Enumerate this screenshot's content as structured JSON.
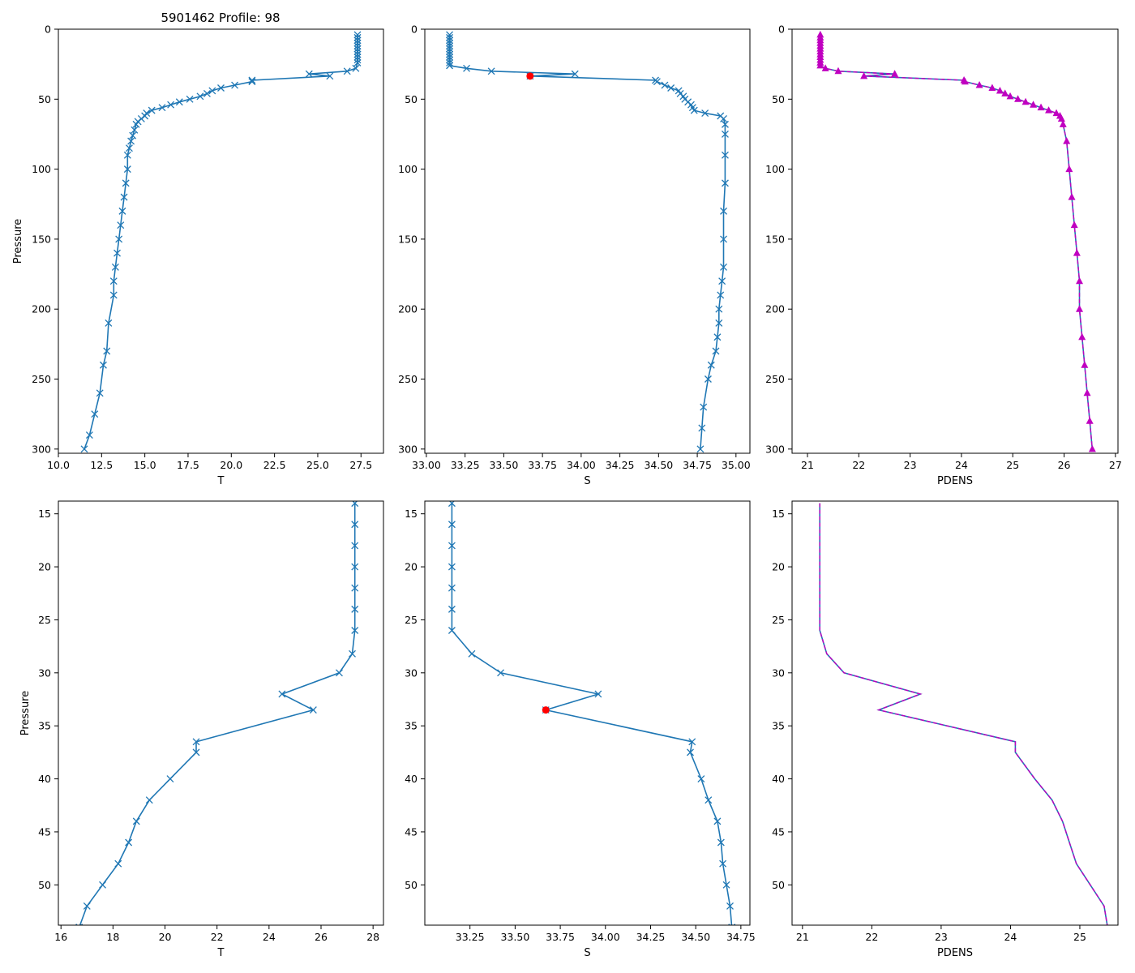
{
  "figure_title": "5901462 Profile: 98",
  "colors": {
    "series": "#1f77b4",
    "magenta": "#c000c0",
    "flag": "#ff0000",
    "axes": "#000000"
  },
  "chart_data": [
    {
      "type": "line",
      "panel": "top-left",
      "title": "5901462 Profile: 98",
      "xlabel": "T",
      "ylabel": "Pressure",
      "xlim": [
        10.0,
        28.8
      ],
      "ylim": [
        303,
        0
      ],
      "y_inverted": true,
      "xticks": [
        "10.0",
        "12.5",
        "15.0",
        "17.5",
        "20.0",
        "22.5",
        "25.0",
        "27.5"
      ],
      "yticks": [
        "0",
        "50",
        "100",
        "150",
        "200",
        "250",
        "300"
      ],
      "marker": "x",
      "x": [
        27.3,
        27.3,
        27.3,
        27.3,
        27.3,
        27.3,
        27.3,
        27.3,
        27.3,
        27.3,
        27.3,
        27.2,
        26.7,
        24.5,
        25.7,
        21.2,
        21.2,
        20.2,
        19.4,
        18.9,
        18.6,
        18.2,
        17.6,
        17.0,
        16.5,
        16.0,
        15.4,
        15.1,
        15.0,
        14.8,
        14.6,
        14.5,
        14.4,
        14.3,
        14.2,
        14.1,
        14.0,
        14.0,
        13.9,
        13.8,
        13.7,
        13.6,
        13.5,
        13.4,
        13.3,
        13.2,
        13.2,
        12.9,
        12.8,
        12.6,
        12.4,
        12.1,
        11.8,
        11.5
      ],
      "y": [
        4,
        6,
        8,
        10,
        12,
        14,
        16,
        18,
        20,
        22,
        24,
        28,
        30,
        32,
        33.5,
        36.5,
        37.5,
        40,
        42,
        44,
        46,
        48,
        50,
        52,
        54,
        56,
        58,
        60,
        62,
        64,
        66,
        68,
        72,
        76,
        80,
        85,
        90,
        100,
        110,
        120,
        130,
        140,
        150,
        160,
        170,
        180,
        190,
        210,
        230,
        240,
        260,
        275,
        290,
        300
      ]
    },
    {
      "type": "line",
      "panel": "top-middle",
      "xlabel": "S",
      "xlim": [
        32.99,
        35.09
      ],
      "ylim": [
        303,
        0
      ],
      "y_inverted": true,
      "xticks": [
        "33.00",
        "33.25",
        "33.50",
        "33.75",
        "34.00",
        "34.25",
        "34.50",
        "34.75",
        "35.00"
      ],
      "yticks": [
        "0",
        "50",
        "100",
        "150",
        "200",
        "250",
        "300"
      ],
      "marker": "x",
      "x": [
        33.15,
        33.15,
        33.15,
        33.15,
        33.15,
        33.15,
        33.15,
        33.15,
        33.15,
        33.15,
        33.15,
        33.15,
        33.26,
        33.42,
        33.96,
        33.67,
        34.48,
        34.49,
        34.54,
        34.58,
        34.63,
        34.64,
        34.66,
        34.67,
        34.69,
        34.71,
        34.72,
        34.73,
        34.8,
        34.9,
        34.92,
        34.93,
        34.93,
        34.93,
        34.93,
        34.92,
        34.92,
        34.92,
        34.91,
        34.9,
        34.89,
        34.89,
        34.88,
        34.87,
        34.84,
        34.82,
        34.79,
        34.78,
        34.77
      ],
      "y": [
        4,
        6,
        8,
        10,
        12,
        14,
        16,
        18,
        20,
        22,
        24,
        26,
        28,
        30,
        32,
        33.5,
        36.5,
        37.5,
        40,
        42,
        44,
        46,
        48,
        50,
        52,
        54,
        56,
        58,
        60,
        62,
        64,
        68,
        75,
        90,
        110,
        130,
        150,
        170,
        180,
        190,
        200,
        210,
        220,
        230,
        240,
        250,
        270,
        285,
        300
      ],
      "flagged": {
        "x": 33.67,
        "y": 33.5
      }
    },
    {
      "type": "line",
      "panel": "top-right",
      "xlabel": "PDENS",
      "xlim": [
        20.7,
        27.05
      ],
      "ylim": [
        303,
        0
      ],
      "y_inverted": true,
      "xticks": [
        "21",
        "22",
        "23",
        "24",
        "25",
        "26",
        "27"
      ],
      "yticks": [
        "0",
        "50",
        "100",
        "150",
        "200",
        "250",
        "300"
      ],
      "marker": "^",
      "x": [
        21.25,
        21.25,
        21.25,
        21.25,
        21.25,
        21.25,
        21.25,
        21.25,
        21.25,
        21.25,
        21.25,
        21.25,
        21.35,
        21.6,
        22.7,
        22.1,
        24.05,
        24.07,
        24.35,
        24.6,
        24.75,
        24.85,
        24.95,
        25.1,
        25.25,
        25.4,
        25.55,
        25.7,
        25.85,
        25.92,
        25.95,
        25.98,
        26.05,
        26.1,
        26.15,
        26.2,
        26.25,
        26.3,
        26.3,
        26.35,
        26.4,
        26.45,
        26.5,
        26.55
      ],
      "y": [
        4,
        6,
        8,
        10,
        12,
        14,
        16,
        18,
        20,
        22,
        24,
        26,
        28,
        30,
        32,
        33.5,
        36.5,
        37.5,
        40,
        42,
        44,
        46,
        48,
        50,
        52,
        54,
        56,
        58,
        60,
        62,
        64,
        68,
        80,
        100,
        120,
        140,
        160,
        180,
        200,
        220,
        240,
        260,
        280,
        300
      ]
    },
    {
      "type": "line",
      "panel": "bottom-left",
      "xlabel": "T",
      "ylabel": "Pressure",
      "xlim": [
        15.9,
        28.4
      ],
      "ylim": [
        53.8,
        13.8
      ],
      "y_inverted": true,
      "xticks": [
        "16",
        "18",
        "20",
        "22",
        "24",
        "26",
        "28"
      ],
      "yticks": [
        "15",
        "20",
        "25",
        "30",
        "35",
        "40",
        "45",
        "50"
      ],
      "marker": "x",
      "x": [
        27.3,
        27.3,
        27.3,
        27.3,
        27.3,
        27.3,
        27.3,
        27.2,
        26.7,
        24.5,
        25.7,
        21.2,
        21.2,
        20.2,
        19.4,
        18.9,
        18.6,
        18.2,
        17.6,
        17.0,
        16.7
      ],
      "y": [
        14,
        16,
        18,
        20,
        22,
        24,
        26,
        28.2,
        30,
        32,
        33.5,
        36.5,
        37.5,
        40,
        42,
        44,
        46,
        48,
        50,
        52,
        54
      ]
    },
    {
      "type": "line",
      "panel": "bottom-middle",
      "xlabel": "S",
      "xlim": [
        33.0,
        34.8
      ],
      "ylim": [
        53.8,
        13.8
      ],
      "y_inverted": true,
      "xticks": [
        "33.25",
        "33.50",
        "33.75",
        "34.00",
        "34.25",
        "34.50",
        "34.75"
      ],
      "yticks": [
        "15",
        "20",
        "25",
        "30",
        "35",
        "40",
        "45",
        "50"
      ],
      "marker": "x",
      "x": [
        33.15,
        33.15,
        33.15,
        33.15,
        33.15,
        33.15,
        33.15,
        33.26,
        33.42,
        33.96,
        33.67,
        34.48,
        34.47,
        34.53,
        34.57,
        34.62,
        34.64,
        34.65,
        34.67,
        34.69,
        34.7
      ],
      "y": [
        14,
        16,
        18,
        20,
        22,
        24,
        26,
        28.2,
        30,
        32,
        33.5,
        36.5,
        37.5,
        40,
        42,
        44,
        46,
        48,
        50,
        52,
        54
      ],
      "flagged": {
        "x": 33.67,
        "y": 33.5
      }
    },
    {
      "type": "line",
      "panel": "bottom-right",
      "xlabel": "PDENS",
      "xlim": [
        20.85,
        25.55
      ],
      "ylim": [
        53.8,
        13.8
      ],
      "y_inverted": true,
      "xticks": [
        "21",
        "22",
        "23",
        "24",
        "25"
      ],
      "yticks": [
        "15",
        "20",
        "25",
        "30",
        "35",
        "40",
        "45",
        "50"
      ],
      "marker": "none",
      "x": [
        21.25,
        21.25,
        21.25,
        21.25,
        21.25,
        21.25,
        21.25,
        21.35,
        21.6,
        22.7,
        22.1,
        24.07,
        24.07,
        24.35,
        24.6,
        24.75,
        24.85,
        24.95,
        25.15,
        25.35,
        25.4
      ],
      "y": [
        14,
        16,
        18,
        20,
        22,
        24,
        26,
        28.2,
        30,
        32,
        33.5,
        36.5,
        37.5,
        40,
        42,
        44,
        46,
        48,
        50,
        52,
        54
      ]
    }
  ]
}
